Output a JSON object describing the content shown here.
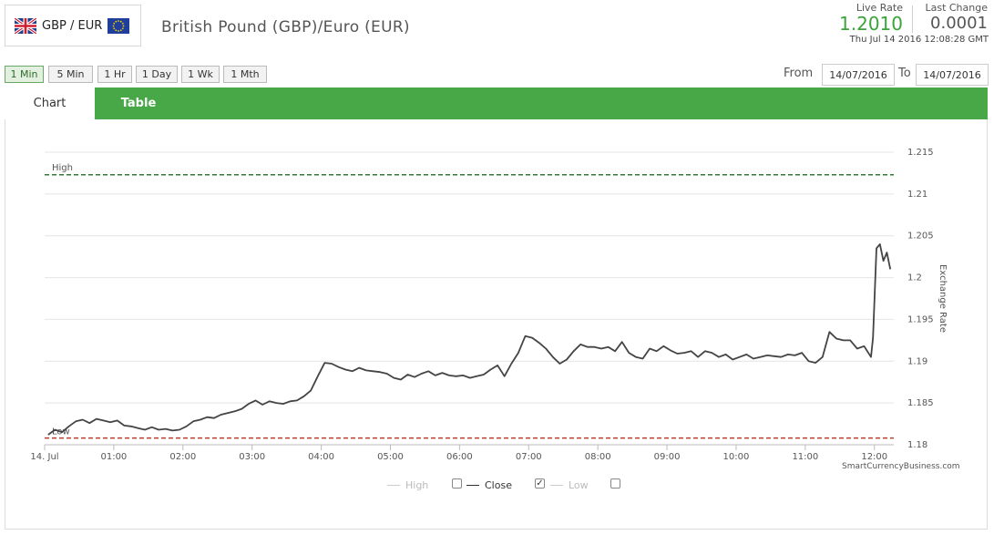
{
  "header": {
    "pair_short": "GBP / EUR",
    "pair_title": "British Pound (GBP)/Euro (EUR)",
    "live_rate_label": "Live Rate",
    "live_rate_value": "1.2010",
    "last_change_label": "Last Change",
    "last_change_value": "0.0001",
    "timestamp": "Thu Jul 14 2016 12:08:28 GMT"
  },
  "intervals": [
    "1 Min",
    "5 Min",
    "1 Hr",
    "1 Day",
    "1 Wk",
    "1 Mth"
  ],
  "active_interval": "1 Min",
  "date_range": {
    "from_label": "From",
    "from_value": "14/07/2016",
    "to_label": "To",
    "to_value": "14/07/2016"
  },
  "tabs": {
    "chart": "Chart",
    "table": "Table"
  },
  "colors": {
    "accent": "#48a848",
    "high": "#2e7d2e",
    "low": "#c0392b",
    "close": "#444444"
  },
  "chart_data": {
    "type": "line",
    "xlabel": "",
    "ylabel": "Exchange Rate",
    "ylim": [
      1.18,
      1.215
    ],
    "xlim": [
      0,
      12.28
    ],
    "y_ticks": [
      1.18,
      1.185,
      1.19,
      1.195,
      1.2,
      1.205,
      1.21,
      1.215
    ],
    "y_tick_labels": [
      "1.18",
      "1.185",
      "1.19",
      "1.195",
      "1.2",
      "1.205",
      "1.21",
      "1.215"
    ],
    "x_ticks": [
      0,
      1,
      2,
      3,
      4,
      5,
      6,
      7,
      8,
      9,
      10,
      11,
      12
    ],
    "x_tick_labels": [
      "14. Jul",
      "01:00",
      "02:00",
      "03:00",
      "04:00",
      "05:00",
      "06:00",
      "07:00",
      "08:00",
      "09:00",
      "10:00",
      "11:00",
      "12:00"
    ],
    "high": {
      "label": "High",
      "value": 1.2123
    },
    "low": {
      "label": "Low",
      "value": 1.1808
    },
    "series": [
      {
        "name": "Close",
        "x": [
          0.05,
          0.15,
          0.25,
          0.35,
          0.45,
          0.55,
          0.65,
          0.75,
          0.85,
          0.95,
          1.05,
          1.15,
          1.25,
          1.35,
          1.45,
          1.55,
          1.65,
          1.75,
          1.85,
          1.95,
          2.05,
          2.15,
          2.25,
          2.35,
          2.45,
          2.55,
          2.65,
          2.75,
          2.85,
          2.95,
          3.05,
          3.15,
          3.25,
          3.35,
          3.45,
          3.55,
          3.65,
          3.75,
          3.85,
          3.95,
          4.05,
          4.15,
          4.25,
          4.35,
          4.45,
          4.55,
          4.65,
          4.75,
          4.85,
          4.95,
          5.05,
          5.15,
          5.25,
          5.35,
          5.45,
          5.55,
          5.65,
          5.75,
          5.85,
          5.95,
          6.05,
          6.15,
          6.25,
          6.35,
          6.45,
          6.55,
          6.65,
          6.75,
          6.85,
          6.95,
          7.05,
          7.15,
          7.25,
          7.35,
          7.45,
          7.55,
          7.65,
          7.75,
          7.85,
          7.95,
          8.05,
          8.15,
          8.25,
          8.35,
          8.45,
          8.55,
          8.65,
          8.75,
          8.85,
          8.95,
          9.05,
          9.15,
          9.25,
          9.35,
          9.45,
          9.55,
          9.65,
          9.75,
          9.85,
          9.95,
          10.05,
          10.15,
          10.25,
          10.35,
          10.45,
          10.55,
          10.65,
          10.75,
          10.85,
          10.95,
          11.05,
          11.15,
          11.25,
          11.35,
          11.45,
          11.55,
          11.65,
          11.75,
          11.85,
          11.95,
          11.98,
          12.03,
          12.08,
          12.13,
          12.18,
          12.23
        ],
        "values": [
          1.1812,
          1.1818,
          1.1815,
          1.1822,
          1.1828,
          1.183,
          1.1826,
          1.1831,
          1.1829,
          1.1827,
          1.1829,
          1.1823,
          1.1822,
          1.182,
          1.1818,
          1.1821,
          1.1818,
          1.1819,
          1.1817,
          1.1818,
          1.1822,
          1.1828,
          1.183,
          1.1833,
          1.1832,
          1.1836,
          1.1838,
          1.184,
          1.1843,
          1.1849,
          1.1853,
          1.1848,
          1.1852,
          1.185,
          1.1849,
          1.1852,
          1.1853,
          1.1858,
          1.1865,
          1.1882,
          1.1898,
          1.1897,
          1.1893,
          1.189,
          1.1888,
          1.1892,
          1.1889,
          1.1888,
          1.1887,
          1.1885,
          1.188,
          1.1878,
          1.1884,
          1.1881,
          1.1885,
          1.1888,
          1.1883,
          1.1886,
          1.1883,
          1.1882,
          1.1883,
          1.188,
          1.1882,
          1.1884,
          1.189,
          1.1895,
          1.1882,
          1.1897,
          1.191,
          1.193,
          1.1928,
          1.1922,
          1.1915,
          1.1905,
          1.1897,
          1.1902,
          1.1912,
          1.192,
          1.1917,
          1.1917,
          1.1915,
          1.1917,
          1.1912,
          1.1923,
          1.191,
          1.1905,
          1.1903,
          1.1915,
          1.1912,
          1.1918,
          1.1913,
          1.1909,
          1.191,
          1.1912,
          1.1905,
          1.1912,
          1.191,
          1.1905,
          1.1908,
          1.1902,
          1.1905,
          1.1908,
          1.1903,
          1.1905,
          1.1907,
          1.1906,
          1.1905,
          1.1908,
          1.1907,
          1.191,
          1.19,
          1.1898,
          1.1905,
          1.1935,
          1.1927,
          1.1925,
          1.1925,
          1.1915,
          1.1918,
          1.1905,
          1.1928,
          1.2035,
          1.204,
          1.202,
          1.203,
          1.201
        ]
      }
    ],
    "legend": {
      "placement": "bottom-center",
      "items": [
        "High",
        "Close",
        "Low"
      ],
      "checked": [
        "Close"
      ]
    },
    "credit": "SmartCurrencyBusiness.com"
  }
}
